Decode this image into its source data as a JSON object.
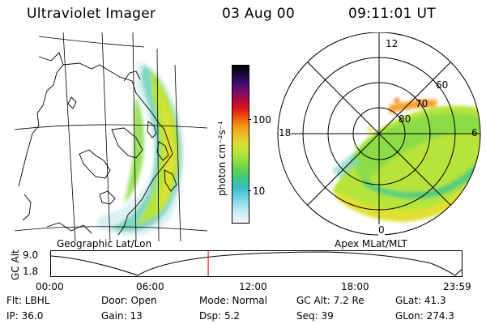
{
  "header": {
    "title": "Ultraviolet Imager",
    "date": "03 Aug 00",
    "time": "09:11:01 UT"
  },
  "colorbar": {
    "unit_label": "photon cm⁻²s⁻¹",
    "ticks": [
      "100",
      "10"
    ],
    "colors": [
      "#000000",
      "#1c0a3c",
      "#3a0f6e",
      "#7a0f6a",
      "#b00a3a",
      "#dc1a1a",
      "#f05a10",
      "#f49a18",
      "#e9c02a",
      "#d8e030",
      "#b6e43a",
      "#8cdc46",
      "#5cd050",
      "#3cc88a",
      "#3cbcc8",
      "#6acfe0",
      "#a4e0ec",
      "#d4eef4",
      "#f0f6f8"
    ]
  },
  "geo_panel": {
    "caption": "Geographic Lat/Lon"
  },
  "polar_panel": {
    "caption": "Apex MLat/MLT",
    "hour_labels": [
      "12",
      "18",
      "6",
      "0"
    ],
    "lat_labels": [
      "60",
      "70",
      "80"
    ]
  },
  "altitude_plot": {
    "ylabel": "GC Alt",
    "y_ticks": [
      "9.0",
      "1.8"
    ],
    "x_ticks": [
      "00:00",
      "06:00",
      "12:00",
      "18:00",
      "23:59"
    ],
    "current_time_fraction": 0.382
  },
  "info": {
    "filter": "Flt: LBHL",
    "door": "Door: Open",
    "mode": "Mode: Normal",
    "gc_alt": "GC Alt: 7.2 Re",
    "glat": "GLat:  41.3",
    "ip": "IP: 36.0",
    "gain": "Gain: 13",
    "dsp": "Dsp:    5.2",
    "seq": "Seq: 39",
    "glon": "GLon: 274.3"
  }
}
